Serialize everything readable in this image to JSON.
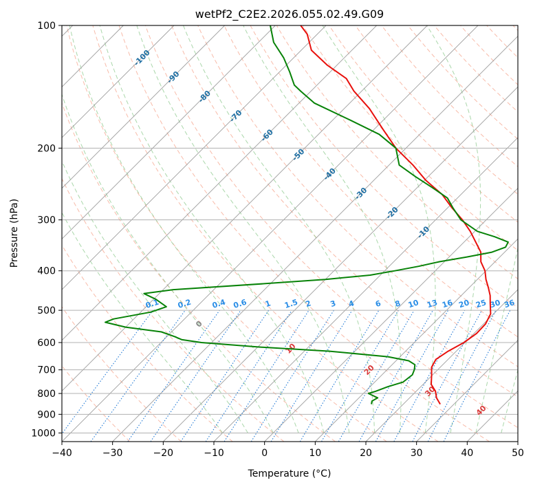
{
  "chart_data": {
    "type": "line",
    "subtype": "skew-t",
    "title": "wetPf2_C2E2.2026.055.02.49.G09",
    "xlabel": "Temperature (°C)",
    "ylabel": "Pressure (hPa)",
    "xlim": [
      -40,
      50
    ],
    "ylim": [
      1050,
      100
    ],
    "yscale": "log",
    "grid": true,
    "x_ticks": [
      -40,
      -30,
      -20,
      -10,
      0,
      10,
      20,
      30,
      40,
      50
    ],
    "x_tick_labels": [
      "−40",
      "−30",
      "−20",
      "−10",
      "0",
      "10",
      "20",
      "30",
      "40",
      "50"
    ],
    "y_ticks": [
      100,
      200,
      300,
      400,
      500,
      600,
      700,
      800,
      900,
      1000
    ],
    "y_tick_labels": [
      "100",
      "200",
      "300",
      "400",
      "500",
      "600",
      "700",
      "800",
      "900",
      "1000"
    ],
    "colors": {
      "temperature": "#e8100c",
      "dewpoint": "#078207",
      "isotherm": "#9e9e9e",
      "dry_adiabat": "#f6a48c",
      "moist_adiabat": "#8dc98d",
      "mixing_ratio": "#1f78d4",
      "isotherm_label": "#1f6fa3",
      "mixing_label": "#2b8ee6",
      "moist_label_red": "#d93a3a",
      "moist_label_gray": "#888888"
    },
    "isotherm_labels": [
      {
        "t": -100,
        "text": "-100"
      },
      {
        "t": -90,
        "text": "-90"
      },
      {
        "t": -80,
        "text": "-80"
      },
      {
        "t": -70,
        "text": "-70"
      },
      {
        "t": -60,
        "text": "-60"
      },
      {
        "t": -50,
        "text": "-50"
      },
      {
        "t": -40,
        "text": "-40"
      },
      {
        "t": -30,
        "text": "-30"
      },
      {
        "t": -20,
        "text": "-20"
      },
      {
        "t": -10,
        "text": "-10"
      }
    ],
    "mixing_ratio_labels": [
      "0.1",
      "0.2",
      "0.4",
      "0.6",
      "1",
      "1.5",
      "2",
      "3",
      "4",
      "6",
      "8",
      "10",
      "13",
      "16",
      "20",
      "25",
      "30",
      "36"
    ],
    "moist_adiabat_labels": [
      "0",
      "10",
      "20",
      "30",
      "40"
    ],
    "series": [
      {
        "id": "temperature",
        "p": [
          850,
          820,
          790,
          760,
          720,
          690,
          660,
          630,
          600,
          570,
          540,
          510,
          480,
          460,
          440,
          420,
          400,
          380,
          360,
          340,
          320,
          300,
          280,
          260,
          240,
          220,
          200,
          180,
          160,
          145,
          135,
          125,
          115,
          105,
          100
        ],
        "t": [
          27.3,
          25.3,
          23.8,
          21.6,
          19.8,
          18.3,
          17.6,
          18.4,
          19.8,
          20.5,
          20.4,
          19.4,
          17.2,
          15.7,
          13.8,
          11.7,
          9.8,
          7.2,
          5.3,
          2.3,
          -0.9,
          -4.7,
          -9.2,
          -13.7,
          -19.7,
          -25.3,
          -32.0,
          -38.2,
          -45.0,
          -51.5,
          -55.5,
          -62.0,
          -68.0,
          -72.0,
          -75.0
        ]
      },
      {
        "id": "dewpoint",
        "p": [
          850,
          835,
          820,
          800,
          790,
          770,
          750,
          720,
          700,
          680,
          665,
          650,
          630,
          615,
          600,
          590,
          580,
          565,
          550,
          535,
          525,
          515,
          505,
          490,
          470,
          455,
          445,
          430,
          420,
          410,
          400,
          390,
          380,
          370,
          360,
          350,
          340,
          330,
          320,
          300,
          280,
          265,
          250,
          235,
          220,
          200,
          185,
          170,
          155,
          145,
          140,
          130,
          120,
          110,
          100
        ],
        "t": [
          13.7,
          13.2,
          13.7,
          11.0,
          12.0,
          13.5,
          15.6,
          16.0,
          15.4,
          14.5,
          12.5,
          7.6,
          -5.0,
          -20.0,
          -32.0,
          -36.5,
          -38.5,
          -42.0,
          -50.0,
          -55.0,
          -54.0,
          -51.0,
          -48.0,
          -46.0,
          -49.5,
          -53.0,
          -48.0,
          -31.0,
          -20.0,
          -12.0,
          -8.0,
          -4.2,
          -1.0,
          3.5,
          7.5,
          9.2,
          8.7,
          5.0,
          0.5,
          -5.0,
          -9.0,
          -12.0,
          -17.0,
          -22.5,
          -28.0,
          -32.0,
          -38.0,
          -47.0,
          -57.0,
          -62.0,
          -64.5,
          -68.0,
          -72.0,
          -77.0,
          -81.0
        ]
      }
    ]
  }
}
